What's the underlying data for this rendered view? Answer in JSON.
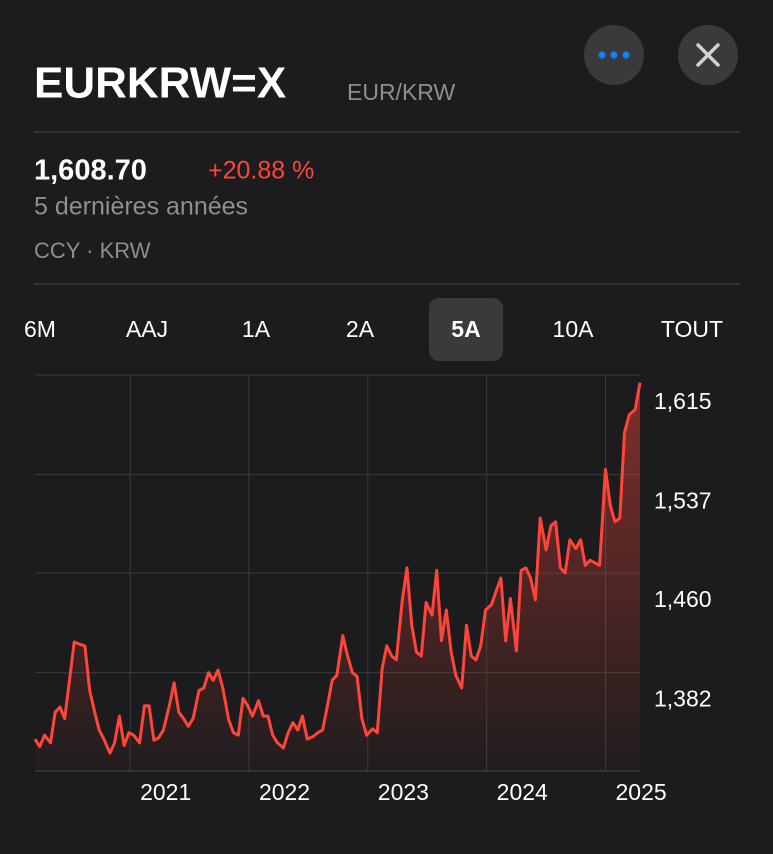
{
  "header": {
    "title": "EURKRW=X",
    "subtitle": "EUR/KRW"
  },
  "quote": {
    "price": "1,608.70",
    "change": "+20.88 %",
    "period": "5 dernières années",
    "exchange": "CCY · KRW"
  },
  "ranges": [
    "6M",
    "AAJ",
    "1A",
    "2A",
    "5A",
    "10A",
    "TOUT"
  ],
  "selected_range": 4,
  "chart_data": {
    "type": "line",
    "x": [
      2020.2,
      2020.24,
      2020.28,
      2020.33,
      2020.37,
      2020.41,
      2020.45,
      2020.49,
      2020.53,
      2020.58,
      2020.62,
      2020.66,
      2020.7,
      2020.74,
      2020.78,
      2020.83,
      2020.87,
      2020.91,
      2020.95,
      2020.99,
      2021.03,
      2021.08,
      2021.12,
      2021.16,
      2021.2,
      2021.24,
      2021.28,
      2021.33,
      2021.37,
      2021.41,
      2021.45,
      2021.49,
      2021.53,
      2021.58,
      2021.62,
      2021.66,
      2021.7,
      2021.74,
      2021.78,
      2021.83,
      2021.87,
      2021.91,
      2021.95,
      2021.99,
      2022.03,
      2022.08,
      2022.12,
      2022.16,
      2022.2,
      2022.24,
      2022.29,
      2022.33,
      2022.37,
      2022.41,
      2022.45,
      2022.49,
      2022.54,
      2022.58,
      2022.62,
      2022.66,
      2022.7,
      2022.74,
      2022.79,
      2022.83,
      2022.87,
      2022.91,
      2022.95,
      2022.99,
      2023.04,
      2023.08,
      2023.12,
      2023.16,
      2023.2,
      2023.24,
      2023.29,
      2023.33,
      2023.37,
      2023.41,
      2023.45,
      2023.49,
      2023.54,
      2023.58,
      2023.62,
      2023.66,
      2023.7,
      2023.74,
      2023.79,
      2023.83,
      2023.87,
      2023.91,
      2023.95,
      2023.99,
      2024.04,
      2024.08,
      2024.12,
      2024.16,
      2024.2,
      2024.25,
      2024.29,
      2024.33,
      2024.37,
      2024.41,
      2024.45,
      2024.5,
      2024.54,
      2024.58,
      2024.62,
      2024.66,
      2024.7,
      2024.75,
      2024.79,
      2024.83,
      2024.87,
      2024.91,
      2024.95,
      2025.0,
      2025.04,
      2025.08,
      2025.12,
      2025.16,
      2025.2,
      2025.25,
      2025.29
    ],
    "series": [
      {
        "color": "#ff453a",
        "values": [
          1330,
          1324,
          1333,
          1327,
          1351,
          1355,
          1346,
          1376,
          1406,
          1404,
          1403,
          1368,
          1352,
          1337,
          1330,
          1319,
          1327,
          1348,
          1325,
          1335,
          1333,
          1327,
          1356,
          1356,
          1329,
          1331,
          1337,
          1356,
          1374,
          1351,
          1346,
          1340,
          1346,
          1368,
          1370,
          1382,
          1376,
          1384,
          1370,
          1345,
          1335,
          1333,
          1362,
          1356,
          1348,
          1360,
          1348,
          1348,
          1333,
          1327,
          1323,
          1335,
          1343,
          1337,
          1348,
          1330,
          1332,
          1335,
          1337,
          1356,
          1376,
          1380,
          1411,
          1395,
          1382,
          1379,
          1346,
          1333,
          1338,
          1335,
          1385,
          1403,
          1395,
          1392,
          1439,
          1464,
          1419,
          1398,
          1395,
          1437,
          1427,
          1462,
          1407,
          1431,
          1399,
          1380,
          1370,
          1419,
          1395,
          1392,
          1403,
          1431,
          1435,
          1446,
          1456,
          1407,
          1440,
          1399,
          1462,
          1464,
          1456,
          1439,
          1503,
          1478,
          1497,
          1500,
          1464,
          1460,
          1486,
          1479,
          1486,
          1466,
          1470,
          1468,
          1466,
          1541,
          1513,
          1500,
          1503,
          1570,
          1584,
          1588,
          1609
        ]
      }
    ],
    "xlim": [
      2020.2,
      2025.29
    ],
    "xticks": [
      2021,
      2022,
      2023,
      2024,
      2025
    ],
    "ylim": [
      1305,
      1615
    ],
    "yticks": [
      {
        "value": 1382,
        "label": "1,382"
      },
      {
        "value": 1460,
        "label": "1,460"
      },
      {
        "value": 1537,
        "label": "1,537"
      },
      {
        "value": 1615,
        "label": "1,615"
      }
    ],
    "grid": true
  }
}
